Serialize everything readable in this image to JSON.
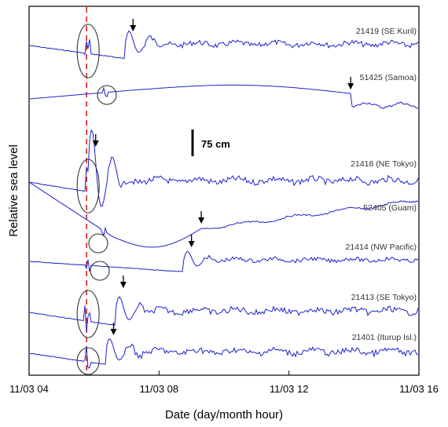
{
  "chart_data": {
    "type": "line",
    "title": "",
    "xlabel": "Date (day/month hour)",
    "ylabel": "Relative sea level",
    "xlim": [
      4,
      16
    ],
    "x_ticks": [
      {
        "label": "11/03 04",
        "hour": 4
      },
      {
        "label": "11/03 08",
        "hour": 8
      },
      {
        "label": "11/03 12",
        "hour": 12
      },
      {
        "label": "11/03 16",
        "hour": 16
      }
    ],
    "earthquake_time_hour": 5.77,
    "scale_bar": {
      "label": "75 cm",
      "value_cm": 75
    },
    "grid": false,
    "colors": {
      "trace": "#1f1fcc",
      "quake_line": "#d62020",
      "frame": "#000000"
    },
    "series": [
      {
        "name": "21419 (SE Kuril)",
        "arrival_hour": 7.2
      },
      {
        "name": "51425 (Samoa)",
        "arrival_hour": 13.9
      },
      {
        "name": "21418 (NE Tokyo)",
        "arrival_hour": 6.05
      },
      {
        "name": "52405 (Guam)",
        "arrival_hour": 9.3
      },
      {
        "name": "21414 (NW Pacific)",
        "arrival_hour": 9.0
      },
      {
        "name": "21413 (SE Tokyo)",
        "arrival_hour": 6.9
      },
      {
        "name": "21401 (Iturup Isl.)",
        "arrival_hour": 6.6
      }
    ]
  }
}
